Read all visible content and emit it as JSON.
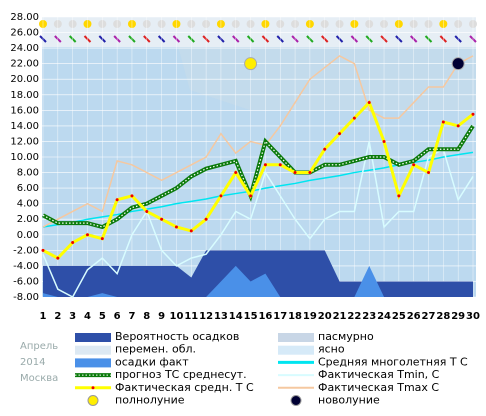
{
  "chart_data": {
    "type": "line",
    "categories": [
      "1",
      "2",
      "3",
      "4",
      "5",
      "6",
      "7",
      "8",
      "9",
      "10",
      "11",
      "12",
      "13",
      "14",
      "15",
      "16",
      "17",
      "18",
      "19",
      "20",
      "21",
      "22",
      "23",
      "24",
      "25",
      "26",
      "27",
      "28",
      "29",
      "30"
    ],
    "ylim": [
      -8,
      28
    ],
    "yticks": [
      {
        "value": -8,
        "label": "-8.00"
      },
      {
        "value": -6,
        "label": "-6.00"
      },
      {
        "value": -4,
        "label": "-4.00"
      },
      {
        "value": -2,
        "label": "-2.00"
      },
      {
        "value": 0,
        "label": "0.00"
      },
      {
        "value": 2,
        "label": "2.00"
      },
      {
        "value": 4,
        "label": "4.00"
      },
      {
        "value": 6,
        "label": "6.00"
      },
      {
        "value": 8,
        "label": "8.00"
      },
      {
        "value": 10,
        "label": "10.00"
      },
      {
        "value": 12,
        "label": "12.00"
      },
      {
        "value": 14,
        "label": "14.00"
      },
      {
        "value": 16,
        "label": "16.00"
      },
      {
        "value": 18,
        "label": "18.00"
      },
      {
        "value": 20,
        "label": "20.00"
      },
      {
        "value": 22,
        "label": "22.00"
      },
      {
        "value": 24,
        "label": "24.00"
      },
      {
        "value": 26,
        "label": "26.00"
      },
      {
        "value": 28,
        "label": "28.00"
      }
    ],
    "grid": true,
    "series": [
      {
        "name": "Вероятность осадков",
        "kind": "area",
        "color": "#2e4fa8",
        "values": [
          -4,
          -4,
          -4,
          -4,
          -4,
          -4,
          -4,
          -4,
          -4,
          -4,
          -5.5,
          -2,
          -2,
          -2,
          -2,
          -2,
          -2,
          -2,
          -2,
          -2,
          -6,
          -6,
          -6,
          -6,
          -6,
          -6,
          -6,
          -6,
          -6,
          -6
        ]
      },
      {
        "name": "осадки факт",
        "kind": "area",
        "color": "#4a90e8",
        "values": [
          -7.5,
          -8,
          -8,
          -8,
          -7.5,
          -8,
          -8,
          -8,
          -8,
          -8,
          -8,
          -8,
          -6,
          -4,
          -6,
          -5,
          -8,
          -8,
          -8,
          -8,
          -8,
          -8,
          -4,
          -8,
          -8,
          -8,
          -8,
          -8,
          -8,
          -8
        ]
      },
      {
        "name": "Средняя многолетняя Т С",
        "kind": "line",
        "color": "#00e5f0",
        "values": [
          1,
          1.3,
          1.6,
          2,
          2.3,
          2.6,
          3,
          3.3,
          3.6,
          4,
          4.3,
          4.6,
          5,
          5.3,
          5.6,
          6,
          6.3,
          6.6,
          7,
          7.3,
          7.6,
          8,
          8.3,
          8.6,
          9,
          9.3,
          9.6,
          10,
          10.3,
          10.6
        ]
      },
      {
        "name": "Фактическая Tmin, С",
        "kind": "line",
        "color": "#d8fcff",
        "values": [
          -2.5,
          -7,
          -8,
          -4.5,
          -3,
          -5,
          0,
          3,
          -2,
          -4,
          -3,
          -2.5,
          0,
          3,
          2,
          8,
          5,
          2,
          -0.5,
          2,
          3,
          3,
          12,
          1,
          3,
          3,
          10,
          11,
          4.5,
          7.5
        ]
      },
      {
        "name": "Фактическая Tmax C",
        "kind": "line",
        "color": "#f5c8a0",
        "values": [
          1,
          2,
          3,
          4,
          3,
          9.5,
          9,
          8,
          7,
          8,
          9,
          10,
          13,
          10.5,
          12,
          11.5,
          14,
          17,
          20,
          21.5,
          23,
          22,
          16,
          15,
          15,
          17,
          19,
          19,
          22,
          23
        ]
      },
      {
        "name": "прогноз ТС среднесут.",
        "kind": "dotted",
        "color": "#0b7a0b",
        "values": [
          2.5,
          1.5,
          1.5,
          1.5,
          1,
          2,
          3.5,
          4,
          5,
          6,
          7.5,
          8.5,
          9,
          9.5,
          5,
          12,
          10,
          8,
          8,
          9,
          9,
          9.5,
          10,
          10,
          9,
          9.5,
          11,
          11,
          11,
          14
        ]
      },
      {
        "name": "Фактическая средн. Т С",
        "kind": "marked",
        "color": "#ffff00",
        "values": [
          -2,
          -3,
          -1,
          0,
          -0.5,
          4.5,
          5,
          3,
          2,
          1,
          0.5,
          2,
          5,
          8,
          5,
          9,
          9,
          8,
          8,
          11,
          13,
          15,
          17,
          12,
          5,
          9,
          8,
          14.5,
          14,
          15.5
        ]
      }
    ],
    "extra_legend": [
      "перемен. обл.",
      "пасмурно",
      "ясно"
    ],
    "moons": [
      {
        "name": "полнолуние",
        "day": 15,
        "y": 22,
        "color": "#ffee00"
      },
      {
        "name": "новолуние",
        "day": 29,
        "y": 22,
        "color": "#000033"
      }
    ],
    "side": [
      "Апрель",
      "2014",
      "Москва"
    ]
  }
}
